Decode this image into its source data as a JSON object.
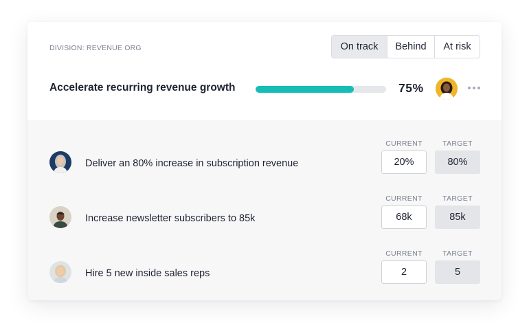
{
  "division": "DIVISION: REVENUE ORG",
  "status": {
    "options": [
      "On track",
      "Behind",
      "At risk"
    ],
    "selected": "On track"
  },
  "goal": {
    "title": "Accelerate recurring revenue growth",
    "progress_percent": 75,
    "progress_label": "75%",
    "owner_avatar_color": "#f0b629"
  },
  "colors": {
    "accent": "#16bdb5",
    "track": "#e6e7eb"
  },
  "column_labels": {
    "current": "CURRENT",
    "target": "TARGET"
  },
  "key_results": [
    {
      "text": "Deliver an 80% increase in subscription revenue",
      "current": "20%",
      "target": "80%",
      "avatar_color": "#1c3c66"
    },
    {
      "text": "Increase newsletter subscribers to 85k",
      "current": "68k",
      "target": "85k",
      "avatar_color": "#d9d3c5"
    },
    {
      "text": "Hire 5 new inside sales reps",
      "current": "2",
      "target": "5",
      "avatar_color": "#dfe3e6"
    }
  ]
}
